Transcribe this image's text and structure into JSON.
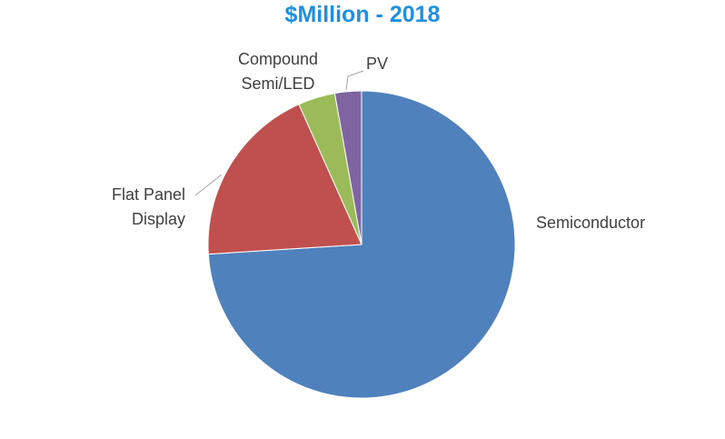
{
  "chart_data": {
    "type": "pie",
    "title": "$Million - 2018",
    "title_color": "#1f8fe0",
    "slices": [
      {
        "label": "Semiconductor",
        "value": 74.0,
        "color": "#4f81bd"
      },
      {
        "label": "Flat Panel Display",
        "label_lines": [
          "Flat Panel",
          "Display"
        ],
        "value": 19.3,
        "color": "#c0504d"
      },
      {
        "label": "Compound Semi/LED",
        "label_lines": [
          "Compound",
          "Semi/LED"
        ],
        "value": 3.9,
        "color": "#9bbb59"
      },
      {
        "label": "PV",
        "value": 2.8,
        "color": "#8064a2"
      }
    ],
    "legend": "none",
    "data_labels": "category names"
  }
}
